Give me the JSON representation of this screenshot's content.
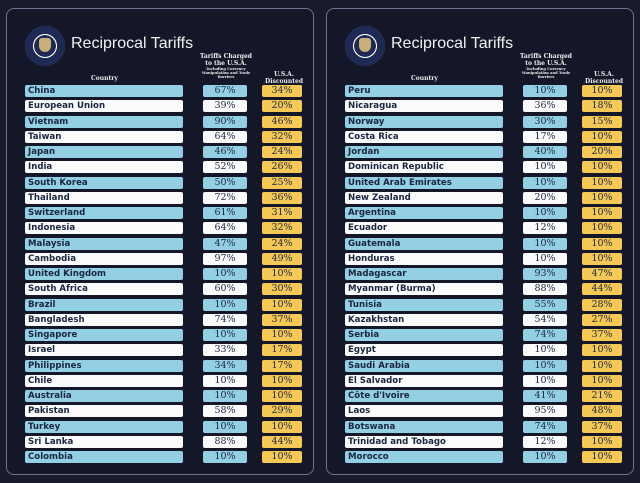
{
  "title": "Reciprocal Tariffs",
  "headers": {
    "country": "Country",
    "charged": "Tariffs Charged to the U.S.A.",
    "charged_sub": "Including Currency Manipulation and Trade Barriers",
    "discounted": "U.S.A. Discounted Reciprocal Tariffs"
  },
  "colors": {
    "row_blue": "#93d0e4",
    "row_white": "#fbfbfb",
    "discounted": "#f6c956",
    "background": "#181b2a"
  },
  "left": [
    [
      "China",
      "67%",
      "34%"
    ],
    [
      "European Union",
      "39%",
      "20%"
    ],
    [
      "Vietnam",
      "90%",
      "46%"
    ],
    [
      "Taiwan",
      "64%",
      "32%"
    ],
    [
      "Japan",
      "46%",
      "24%"
    ],
    [
      "India",
      "52%",
      "26%"
    ],
    [
      "South Korea",
      "50%",
      "25%"
    ],
    [
      "Thailand",
      "72%",
      "36%"
    ],
    [
      "Switzerland",
      "61%",
      "31%"
    ],
    [
      "Indonesia",
      "64%",
      "32%"
    ],
    [
      "Malaysia",
      "47%",
      "24%"
    ],
    [
      "Cambodia",
      "97%",
      "49%"
    ],
    [
      "United Kingdom",
      "10%",
      "10%"
    ],
    [
      "South Africa",
      "60%",
      "30%"
    ],
    [
      "Brazil",
      "10%",
      "10%"
    ],
    [
      "Bangladesh",
      "74%",
      "37%"
    ],
    [
      "Singapore",
      "10%",
      "10%"
    ],
    [
      "Israel",
      "33%",
      "17%"
    ],
    [
      "Philippines",
      "34%",
      "17%"
    ],
    [
      "Chile",
      "10%",
      "10%"
    ],
    [
      "Australia",
      "10%",
      "10%"
    ],
    [
      "Pakistan",
      "58%",
      "29%"
    ],
    [
      "Turkey",
      "10%",
      "10%"
    ],
    [
      "Sri Lanka",
      "88%",
      "44%"
    ],
    [
      "Colombia",
      "10%",
      "10%"
    ]
  ],
  "right": [
    [
      "Peru",
      "10%",
      "10%"
    ],
    [
      "Nicaragua",
      "36%",
      "18%"
    ],
    [
      "Norway",
      "30%",
      "15%"
    ],
    [
      "Costa Rica",
      "17%",
      "10%"
    ],
    [
      "Jordan",
      "40%",
      "20%"
    ],
    [
      "Dominican Republic",
      "10%",
      "10%"
    ],
    [
      "United Arab Emirates",
      "10%",
      "10%"
    ],
    [
      "New Zealand",
      "20%",
      "10%"
    ],
    [
      "Argentina",
      "10%",
      "10%"
    ],
    [
      "Ecuador",
      "12%",
      "10%"
    ],
    [
      "Guatemala",
      "10%",
      "10%"
    ],
    [
      "Honduras",
      "10%",
      "10%"
    ],
    [
      "Madagascar",
      "93%",
      "47%"
    ],
    [
      "Myanmar (Burma)",
      "88%",
      "44%"
    ],
    [
      "Tunisia",
      "55%",
      "28%"
    ],
    [
      "Kazakhstan",
      "54%",
      "27%"
    ],
    [
      "Serbia",
      "74%",
      "37%"
    ],
    [
      "Egypt",
      "10%",
      "10%"
    ],
    [
      "Saudi Arabia",
      "10%",
      "10%"
    ],
    [
      "El Salvador",
      "10%",
      "10%"
    ],
    [
      "Côte d'Ivoire",
      "41%",
      "21%"
    ],
    [
      "Laos",
      "95%",
      "48%"
    ],
    [
      "Botswana",
      "74%",
      "37%"
    ],
    [
      "Trinidad and Tobago",
      "12%",
      "10%"
    ],
    [
      "Morocco",
      "10%",
      "10%"
    ]
  ]
}
